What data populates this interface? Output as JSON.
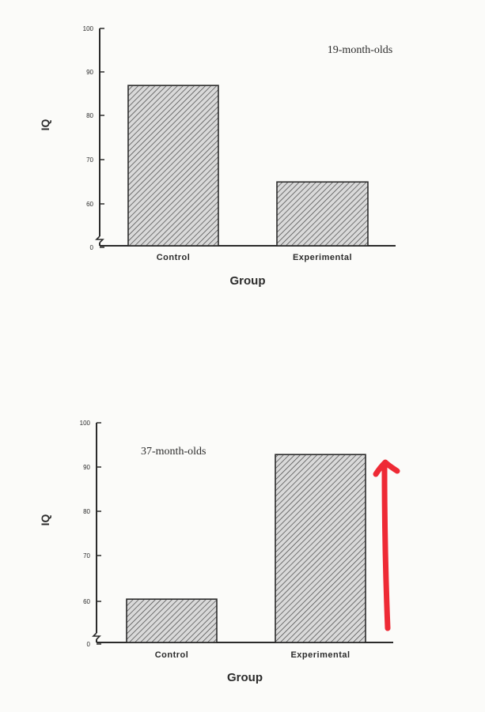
{
  "chart_data": [
    {
      "type": "bar",
      "annotation": "19-month-olds",
      "categories": [
        "Control",
        "Experimental"
      ],
      "values": [
        87,
        65
      ],
      "xlabel": "Group",
      "ylabel": "IQ",
      "yticks": [
        "100",
        "90",
        "80",
        "70",
        "60",
        "0"
      ],
      "axis_break": true,
      "grid": false,
      "bar_fill": "hatched"
    },
    {
      "type": "bar",
      "annotation": "37-month-olds",
      "categories": [
        "Control",
        "Experimental"
      ],
      "values": [
        60.5,
        93
      ],
      "xlabel": "Group",
      "ylabel": "IQ",
      "yticks": [
        "100",
        "90",
        "80",
        "70",
        "60",
        "0"
      ],
      "axis_break": true,
      "grid": false,
      "bar_fill": "hatched"
    }
  ],
  "overlay": {
    "arrow_color": "#ee2a35",
    "arrow_direction": "up",
    "arrow_target": "37-month-olds Experimental bar"
  },
  "colors": {
    "ink": "#2b2b2b",
    "paper": "#fbfbf9",
    "bar_bg": "#d6d6d6"
  }
}
